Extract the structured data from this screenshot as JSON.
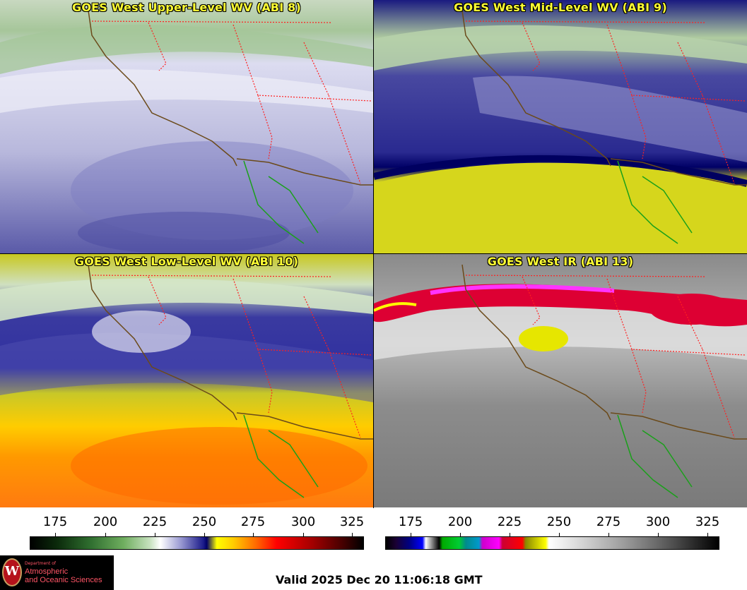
{
  "panels": [
    {
      "title": "GOES West Upper-Level WV (ABI 8)"
    },
    {
      "title": "GOES West Mid-Level WV (ABI 9)"
    },
    {
      "title": "GOES West Low-Level WV (ABI 10)"
    },
    {
      "title": "GOES West IR (ABI 13)"
    }
  ],
  "colorbars": {
    "left": {
      "name": "water-vapor-colorbar",
      "ticks": [
        "175",
        "200",
        "225",
        "250",
        "275",
        "300",
        "325"
      ]
    },
    "right": {
      "name": "infrared-colorbar",
      "ticks": [
        "175",
        "200",
        "225",
        "250",
        "275",
        "300",
        "325"
      ]
    }
  },
  "logo": {
    "department": "Department of",
    "line1": "Atmospheric",
    "line2": "and Oceanic Sciences",
    "seal_letter": "W"
  },
  "valid_time": "Valid 2025 Dec 20 11:06:18 GMT",
  "colors": {
    "title_text": "#ffff33",
    "coastline": "#6b4a1a",
    "state_border": "#ff2020",
    "mexico_coast": "#1aa01a"
  }
}
